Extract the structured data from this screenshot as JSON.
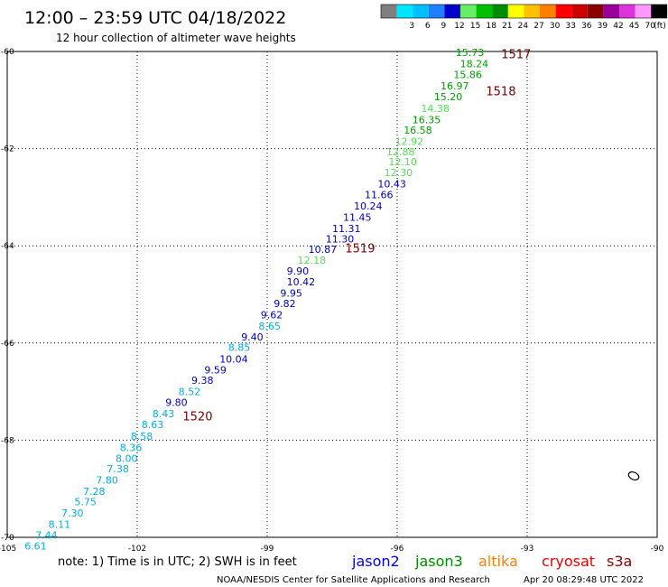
{
  "header": {
    "title": "12:00 – 23:59 UTC 04/18/2022",
    "subtitle": "12 hour collection of altimeter wave heights"
  },
  "legend": {
    "unit": "(ft)",
    "swatches": [
      {
        "label": "",
        "color": "#7f7f7f"
      },
      {
        "label": "3",
        "color": "#00e5ff"
      },
      {
        "label": "6",
        "color": "#00bfff"
      },
      {
        "label": "9",
        "color": "#1f7fff"
      },
      {
        "label": "12",
        "color": "#0000cd"
      },
      {
        "label": "15",
        "color": "#66ee66"
      },
      {
        "label": "18",
        "color": "#00c000"
      },
      {
        "label": "21",
        "color": "#008c00"
      },
      {
        "label": "24",
        "color": "#ffff00"
      },
      {
        "label": "27",
        "color": "#ffc000"
      },
      {
        "label": "30",
        "color": "#ff8000"
      },
      {
        "label": "33",
        "color": "#ff0000"
      },
      {
        "label": "36",
        "color": "#cc0000"
      },
      {
        "label": "39",
        "color": "#8b0000"
      },
      {
        "label": "42",
        "color": "#990099"
      },
      {
        "label": "45",
        "color": "#dd33dd"
      },
      {
        "label": "70",
        "color": "#ff99ff"
      },
      {
        "label": "",
        "color": "#000000"
      }
    ]
  },
  "axes": {
    "x_ticks": [
      "-105",
      "-102",
      "-99",
      "-96",
      "-93",
      "-90"
    ],
    "y_ticks": [
      "-60",
      "-62",
      "-64",
      "-66",
      "-68",
      "-70"
    ]
  },
  "colors": {
    "cyan": "#00b0e0",
    "lightblue": "#0090ee",
    "blue": "#0000bb",
    "lightgreen": "#55dd55",
    "green": "#00a000",
    "darkred": "#7a0000"
  },
  "chart_data": {
    "type": "scatter",
    "measurements": [
      {
        "value": "15.73",
        "lon": -94.65,
        "lat": -60.02,
        "color": "green"
      },
      {
        "value": "18.24",
        "lon": -94.55,
        "lat": -60.25,
        "color": "green"
      },
      {
        "value": "15.86",
        "lon": -94.7,
        "lat": -60.47,
        "color": "green"
      },
      {
        "value": "16.97",
        "lon": -95.0,
        "lat": -60.71,
        "color": "green"
      },
      {
        "value": "15.20",
        "lon": -95.15,
        "lat": -60.93,
        "color": "green"
      },
      {
        "value": "14.38",
        "lon": -95.45,
        "lat": -61.17,
        "color": "lightgreen"
      },
      {
        "value": "16.35",
        "lon": -95.65,
        "lat": -61.4,
        "color": "green"
      },
      {
        "value": "16.58",
        "lon": -95.85,
        "lat": -61.62,
        "color": "green"
      },
      {
        "value": "12.92",
        "lon": -96.05,
        "lat": -61.85,
        "color": "lightgreen"
      },
      {
        "value": "12.88",
        "lon": -96.25,
        "lat": -62.06,
        "color": "lightgreen"
      },
      {
        "value": "12.10",
        "lon": -96.2,
        "lat": -62.27,
        "color": "lightgreen"
      },
      {
        "value": "12.30",
        "lon": -96.3,
        "lat": -62.49,
        "color": "lightgreen"
      },
      {
        "value": "10.43",
        "lon": -96.45,
        "lat": -62.72,
        "color": "blue"
      },
      {
        "value": "11.66",
        "lon": -96.75,
        "lat": -62.95,
        "color": "blue"
      },
      {
        "value": "10.24",
        "lon": -97.0,
        "lat": -63.18,
        "color": "blue"
      },
      {
        "value": "11.45",
        "lon": -97.25,
        "lat": -63.41,
        "color": "blue"
      },
      {
        "value": "11.31",
        "lon": -97.5,
        "lat": -63.64,
        "color": "blue"
      },
      {
        "value": "11.30",
        "lon": -97.65,
        "lat": -63.86,
        "color": "blue"
      },
      {
        "value": "10.87",
        "lon": -98.05,
        "lat": -64.07,
        "color": "blue"
      },
      {
        "value": "12.18",
        "lon": -98.3,
        "lat": -64.29,
        "color": "lightgreen"
      },
      {
        "value": "9.90",
        "lon": -98.55,
        "lat": -64.52,
        "color": "blue"
      },
      {
        "value": "10.42",
        "lon": -98.55,
        "lat": -64.74,
        "color": "blue"
      },
      {
        "value": "9.95",
        "lon": -98.7,
        "lat": -64.97,
        "color": "blue"
      },
      {
        "value": "9.82",
        "lon": -98.85,
        "lat": -65.19,
        "color": "blue"
      },
      {
        "value": "9.62",
        "lon": -99.15,
        "lat": -65.42,
        "color": "blue"
      },
      {
        "value": "8.65",
        "lon": -99.2,
        "lat": -65.65,
        "color": "cyan"
      },
      {
        "value": "9.40",
        "lon": -99.6,
        "lat": -65.87,
        "color": "blue"
      },
      {
        "value": "8.85",
        "lon": -99.9,
        "lat": -66.09,
        "color": "cyan"
      },
      {
        "value": "10.04",
        "lon": -100.1,
        "lat": -66.33,
        "color": "blue"
      },
      {
        "value": "9.59",
        "lon": -100.45,
        "lat": -66.55,
        "color": "blue"
      },
      {
        "value": "9.38",
        "lon": -100.75,
        "lat": -66.77,
        "color": "blue"
      },
      {
        "value": "8.52",
        "lon": -101.05,
        "lat": -67.0,
        "color": "cyan"
      },
      {
        "value": "9.80",
        "lon": -101.35,
        "lat": -67.22,
        "color": "blue"
      },
      {
        "value": "8.43",
        "lon": -101.65,
        "lat": -67.45,
        "color": "cyan"
      },
      {
        "value": "8.63",
        "lon": -101.9,
        "lat": -67.68,
        "color": "cyan"
      },
      {
        "value": "8.58",
        "lon": -102.15,
        "lat": -67.92,
        "color": "cyan"
      },
      {
        "value": "8.36",
        "lon": -102.4,
        "lat": -68.15,
        "color": "cyan"
      },
      {
        "value": "8.00",
        "lon": -102.5,
        "lat": -68.37,
        "color": "cyan"
      },
      {
        "value": "7.38",
        "lon": -102.7,
        "lat": -68.59,
        "color": "cyan"
      },
      {
        "value": "7.80",
        "lon": -102.95,
        "lat": -68.82,
        "color": "cyan"
      },
      {
        "value": "7.28",
        "lon": -103.25,
        "lat": -69.05,
        "color": "cyan"
      },
      {
        "value": "5.75",
        "lon": -103.45,
        "lat": -69.27,
        "color": "cyan"
      },
      {
        "value": "7.30",
        "lon": -103.75,
        "lat": -69.5,
        "color": "cyan"
      },
      {
        "value": "8.11",
        "lon": -104.05,
        "lat": -69.73,
        "color": "cyan"
      },
      {
        "value": "7.44",
        "lon": -104.35,
        "lat": -69.95,
        "color": "cyan"
      },
      {
        "value": "6.61",
        "lon": -104.6,
        "lat": -70.18,
        "color": "cyan"
      }
    ],
    "time_labels": [
      {
        "label": "1517",
        "lon": -93.6,
        "lat": -60.05
      },
      {
        "label": "1518",
        "lon": -93.95,
        "lat": -60.81
      },
      {
        "label": "1519",
        "lon": -97.2,
        "lat": -64.04
      },
      {
        "label": "1520",
        "lon": -100.95,
        "lat": -67.5
      }
    ]
  },
  "footer": {
    "note": "note:  1) Time is in UTC; 2) SWH is in feet",
    "satellites": [
      {
        "name": "jason2",
        "color": "#0000ee"
      },
      {
        "name": "jason3",
        "color": "#008c00"
      },
      {
        "name": "altika",
        "color": "#ff8000"
      },
      {
        "name": "cryosat",
        "color": "#ee0000"
      },
      {
        "name": "s3a",
        "color": "#8b0000"
      }
    ],
    "credit": "NOAA/NESDIS Center for Satellite Applications and Research",
    "timestamp": "Apr 20 08:29:48 UTC 2022"
  }
}
